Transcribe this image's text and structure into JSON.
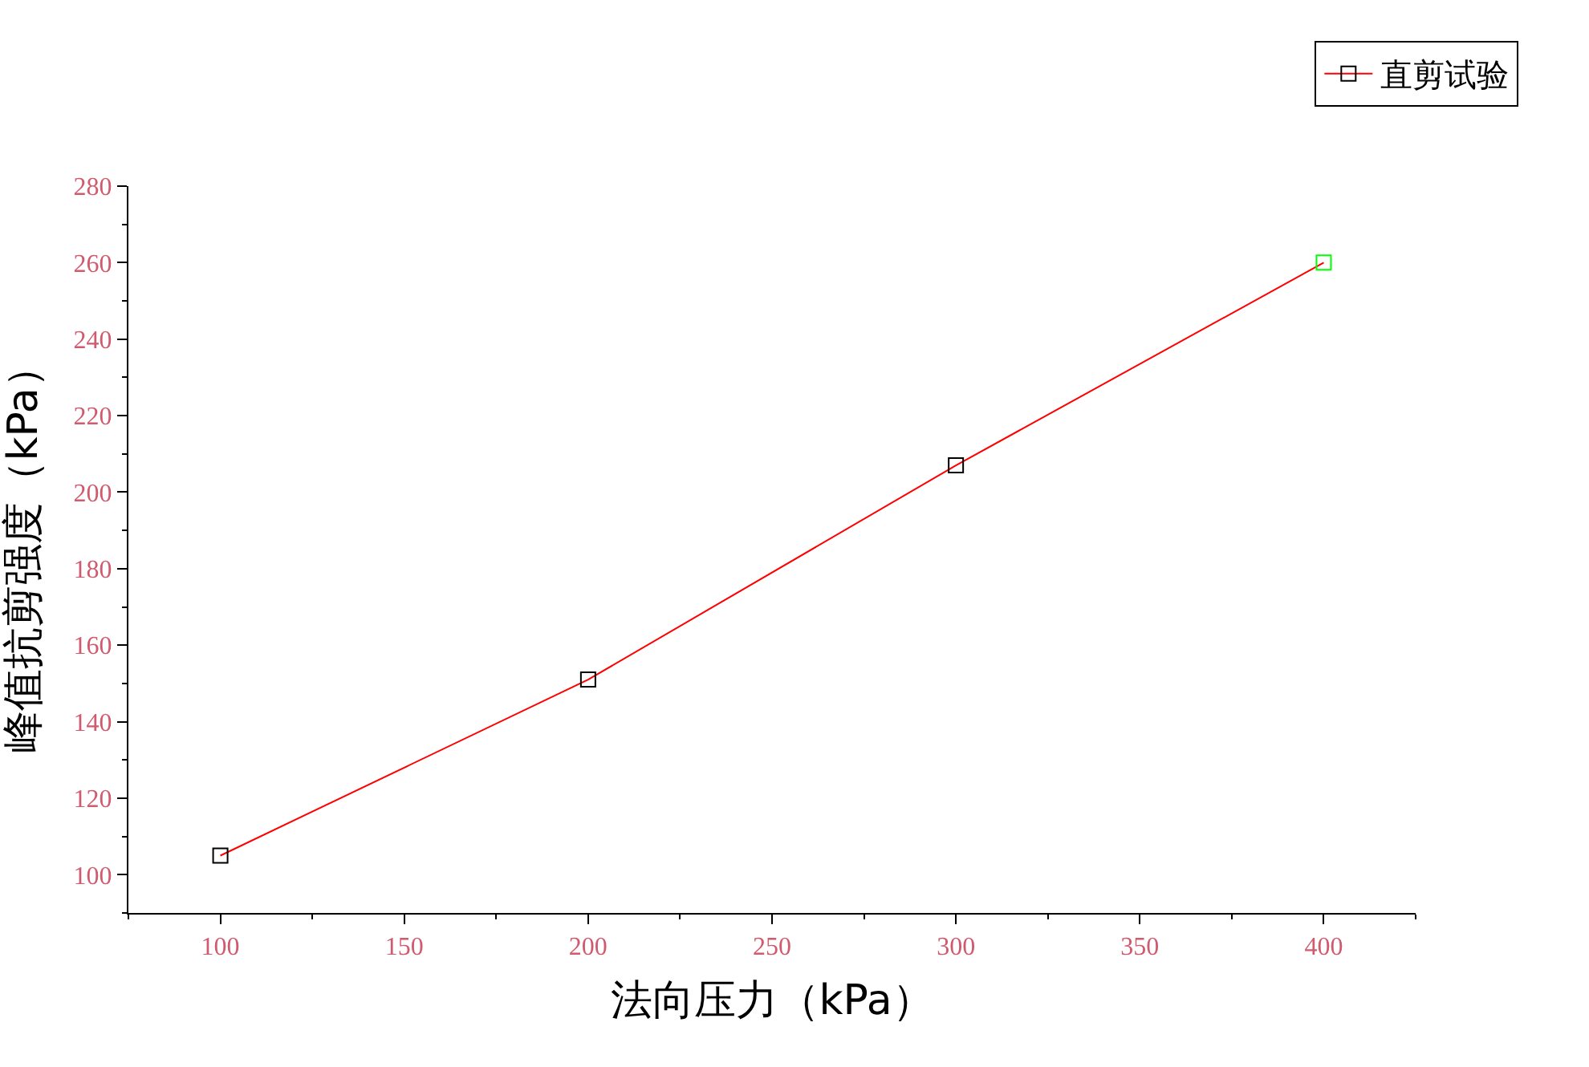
{
  "chart_data": {
    "type": "line",
    "xlabel": "法向压力（kPa）",
    "ylabel": "峰值抗剪强度（kPa）",
    "x": [
      100,
      200,
      300,
      400
    ],
    "series": [
      {
        "name": "直剪试验",
        "color": "#ff0000",
        "values": [
          105,
          151,
          207,
          260
        ],
        "colors": [
          "#000000",
          "#000000",
          "#000000",
          "#00ff00"
        ]
      }
    ],
    "xlim": [
      75,
      425
    ],
    "xticks": [
      100,
      150,
      200,
      250,
      300,
      350,
      400
    ],
    "ylim": [
      90,
      280
    ],
    "yticks": [
      100,
      120,
      140,
      160,
      180,
      200,
      220,
      240,
      260,
      280
    ],
    "marker": "square",
    "line_style": "solid",
    "legend": "top right"
  }
}
